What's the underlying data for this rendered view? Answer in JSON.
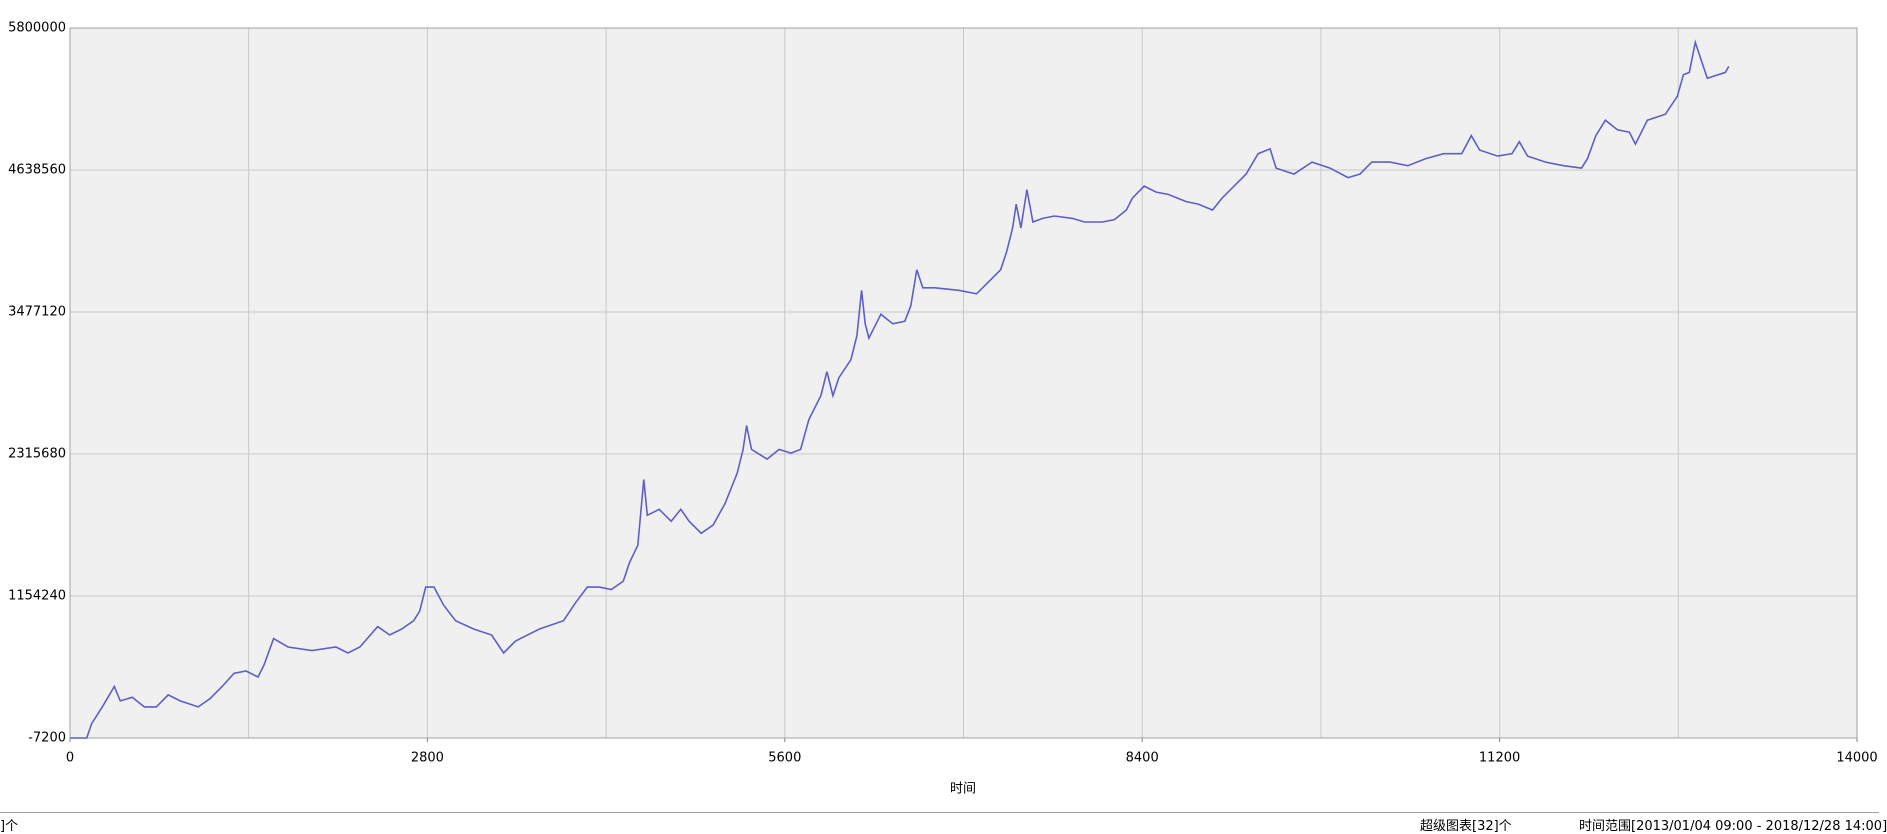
{
  "chart_data": {
    "type": "line",
    "x_label": "时间",
    "xlim": [
      0,
      14000
    ],
    "xticks": [
      0,
      2800,
      5600,
      8400,
      11200,
      14000
    ],
    "ylim": [
      -7200,
      5800000
    ],
    "yticks": [
      -7200,
      1154240,
      2315680,
      3477120,
      4638560,
      5800000
    ],
    "grid": true,
    "series": [
      {
        "color": "#5f5fc4",
        "x": [
          0,
          131,
          169,
          253,
          347,
          394,
          488,
          582,
          676,
          769,
          863,
          1004,
          1098,
          1192,
          1285,
          1379,
          1473,
          1520,
          1595,
          1708,
          1895,
          2083,
          2177,
          2271,
          2411,
          2505,
          2599,
          2693,
          2740,
          2787,
          2852,
          2927,
          3021,
          3162,
          3303,
          3397,
          3490,
          3678,
          3866,
          3960,
          4053,
          4147,
          4241,
          4335,
          4382,
          4448,
          4495,
          4523,
          4616,
          4710,
          4785,
          4851,
          4945,
          5039,
          5132,
          5226,
          5273,
          5301,
          5339,
          5461,
          5555,
          5648,
          5724,
          5789,
          5883,
          5930,
          5977,
          6024,
          6118,
          6165,
          6202,
          6230,
          6259,
          6353,
          6446,
          6540,
          6587,
          6634,
          6681,
          6775,
          6962,
          7103,
          7197,
          7291,
          7338,
          7385,
          7413,
          7450,
          7497,
          7544,
          7619,
          7713,
          7854,
          7947,
          8088,
          8182,
          8276,
          8323,
          8416,
          8510,
          8604,
          8745,
          8839,
          8951,
          9026,
          9120,
          9214,
          9308,
          9402,
          9449,
          9589,
          9730,
          9871,
          10012,
          10106,
          10199,
          10340,
          10481,
          10622,
          10762,
          10903,
          10978,
          11044,
          11185,
          11297,
          11354,
          11419,
          11560,
          11701,
          11842,
          11889,
          11954,
          12029,
          12123,
          12217,
          12264,
          12358,
          12499,
          12593,
          12640,
          12686,
          12733,
          12780,
          12827,
          12968,
          12996
        ],
        "values": [
          -7200,
          -7200,
          110000,
          247000,
          414000,
          296000,
          326000,
          247000,
          247000,
          345000,
          296000,
          247000,
          316000,
          414000,
          522000,
          541000,
          492000,
          590000,
          806000,
          737000,
          708000,
          737000,
          688000,
          737000,
          904000,
          835000,
          884000,
          952000,
          1031000,
          1227000,
          1227000,
          1080000,
          952000,
          884000,
          835000,
          688000,
          786000,
          884000,
          952000,
          1099000,
          1227000,
          1227000,
          1207000,
          1276000,
          1423000,
          1569000,
          2108000,
          1814000,
          1863000,
          1765000,
          1863000,
          1765000,
          1667000,
          1736000,
          1912000,
          2157000,
          2353000,
          2549000,
          2353000,
          2274000,
          2353000,
          2323000,
          2353000,
          2598000,
          2793000,
          2989000,
          2793000,
          2940000,
          3087000,
          3283000,
          3655000,
          3381000,
          3264000,
          3459000,
          3381000,
          3401000,
          3528000,
          3822000,
          3675000,
          3675000,
          3655000,
          3626000,
          3724000,
          3822000,
          3969000,
          4164000,
          4360000,
          4164000,
          4478000,
          4213000,
          4243000,
          4262000,
          4243000,
          4213000,
          4213000,
          4233000,
          4311000,
          4409000,
          4507000,
          4458000,
          4439000,
          4380000,
          4360000,
          4311000,
          4409000,
          4507000,
          4605000,
          4772000,
          4811000,
          4654000,
          4605000,
          4703000,
          4654000,
          4576000,
          4605000,
          4703000,
          4703000,
          4674000,
          4732000,
          4772000,
          4772000,
          4919000,
          4801000,
          4752000,
          4772000,
          4870000,
          4752000,
          4703000,
          4674000,
          4654000,
          4732000,
          4919000,
          5046000,
          4967000,
          4948000,
          4850000,
          5046000,
          5095000,
          5242000,
          5418000,
          5437000,
          5682000,
          5535000,
          5389000,
          5437000,
          5486000
        ]
      }
    ]
  },
  "status_bar": {
    "left": "]个",
    "charts": "超级图表[32]个",
    "range": "时间范围[2013/01/04 09:00 - 2018/12/28 14:00]"
  }
}
